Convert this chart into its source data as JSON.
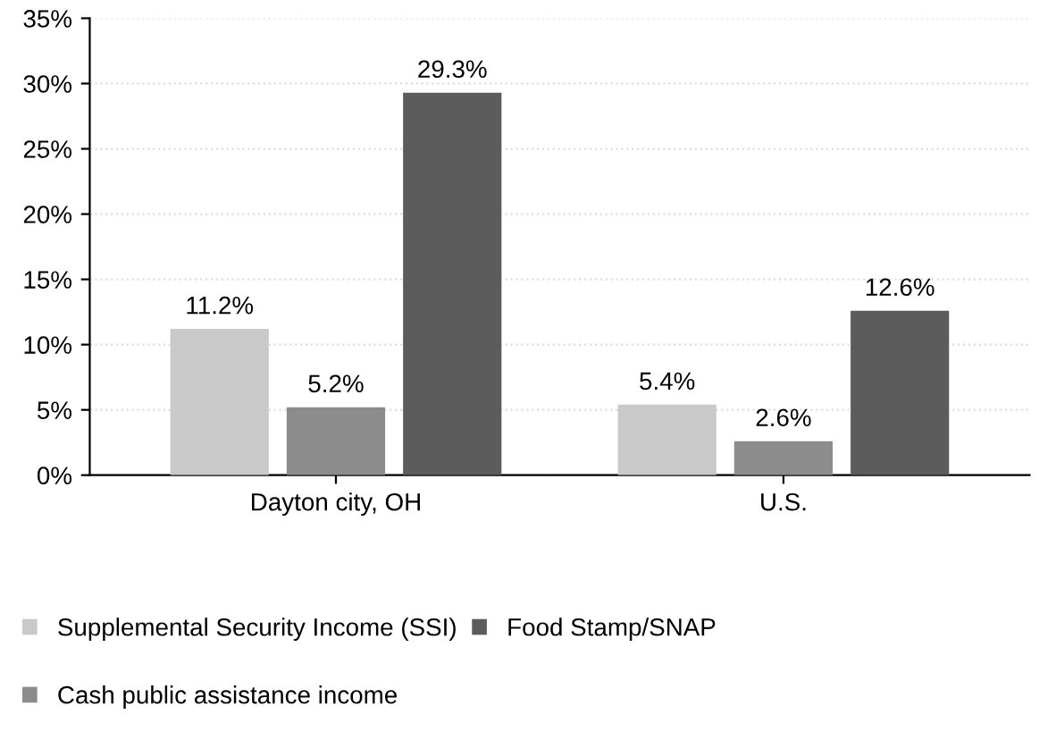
{
  "chart_data": {
    "type": "bar",
    "categories": [
      "Dayton city, OH",
      "U.S."
    ],
    "series": [
      {
        "name": "Supplemental Security Income (SSI)",
        "color": "#c9c9c9",
        "values": [
          11.2,
          5.4
        ],
        "value_labels": [
          "11.2%",
          "5.4%"
        ]
      },
      {
        "name": "Cash public assistance income",
        "color": "#8c8c8c",
        "values": [
          5.2,
          2.6
        ],
        "value_labels": [
          "5.2%",
          "2.6%"
        ]
      },
      {
        "name": "Food Stamp/SNAP",
        "color": "#5c5c5c",
        "values": [
          29.3,
          12.6
        ],
        "value_labels": [
          "29.3%",
          "12.6%"
        ]
      }
    ],
    "ylim": [
      0,
      35
    ],
    "yticks": [
      {
        "value": 0,
        "label": "0%"
      },
      {
        "value": 5,
        "label": "5%"
      },
      {
        "value": 10,
        "label": "10%"
      },
      {
        "value": 15,
        "label": "15%"
      },
      {
        "value": 20,
        "label": "20%"
      },
      {
        "value": 25,
        "label": "25%"
      },
      {
        "value": 30,
        "label": "30%"
      },
      {
        "value": 35,
        "label": "35%"
      }
    ],
    "grid": "y",
    "legend": "bottom"
  }
}
